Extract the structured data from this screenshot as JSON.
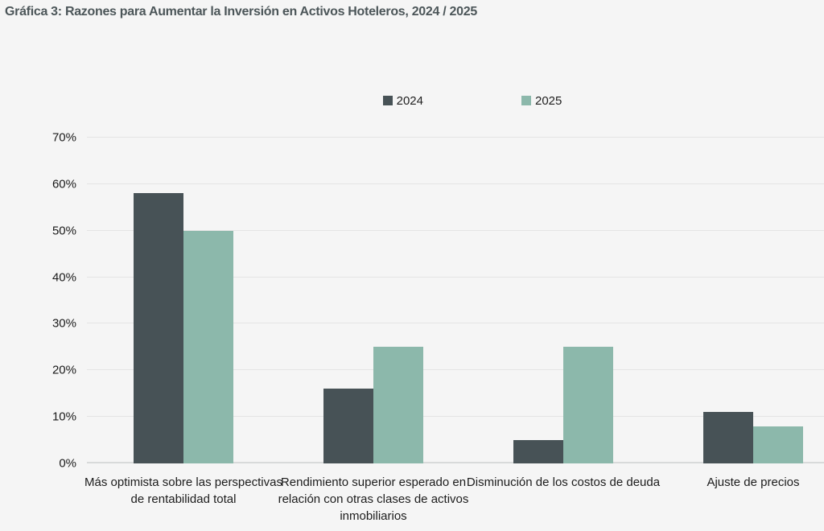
{
  "page_background": "#f5f5f5",
  "chart_data": {
    "type": "bar",
    "title": "Gráfica 3: Razones para Aumentar la Inversión en Activos Hoteleros, 2024 / 2025",
    "categories": [
      "Más optimista sobre las perspectivas de rentabilidad total",
      "Rendimiento superior esperado en relación con otras clases de activos inmobiliarios",
      "Disminución de los costos de deuda",
      "Ajuste de precios"
    ],
    "series": [
      {
        "name": "2024",
        "color": "#475256",
        "values": [
          58,
          16,
          5,
          11
        ]
      },
      {
        "name": "2025",
        "color": "#8cb8ab",
        "values": [
          50,
          25,
          25,
          8
        ]
      }
    ],
    "xlabel": "",
    "ylabel": "",
    "ylim": [
      0,
      70
    ],
    "ytick_step": 10,
    "ytick_suffix": "%",
    "grid": "horizontal",
    "legend_position": "top-center",
    "title_color": "#4c5659",
    "text_color": "#1c1c1c",
    "gridline_color": "#e4e4e4",
    "axis_line_color": "#d8dada"
  }
}
